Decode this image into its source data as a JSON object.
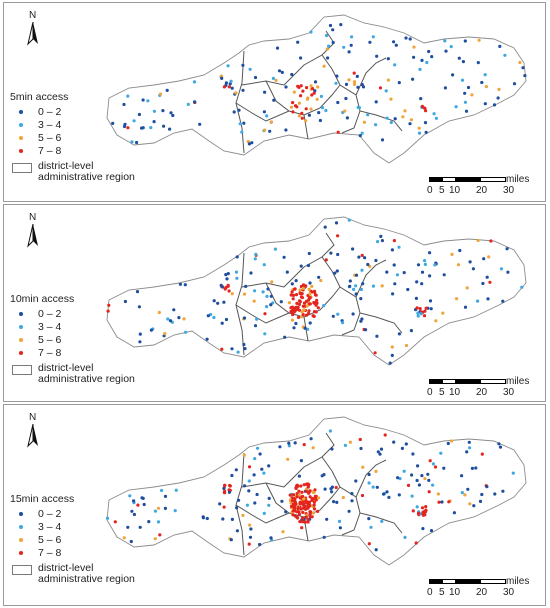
{
  "panels": [
    {
      "legend_title": "5min access",
      "seed": 11,
      "central_red": 25
    },
    {
      "legend_title": "10min access",
      "seed": 29,
      "central_red": 85
    },
    {
      "legend_title": "15min access",
      "seed": 53,
      "central_red": 135
    }
  ],
  "legend": {
    "classes": [
      {
        "label": "0 – 2",
        "color": "#1f4e9e"
      },
      {
        "label": "3 – 4",
        "color": "#3fa8e0"
      },
      {
        "label": "5 – 6",
        "color": "#f0a43a"
      },
      {
        "label": "7 – 8",
        "color": "#e3251e"
      }
    ],
    "region_label_line1": "district-level",
    "region_label_line2": "administrative region"
  },
  "north_label": "N",
  "scale": {
    "ticks": [
      "0",
      "5",
      "10",
      "20",
      "30"
    ],
    "units": "miles"
  },
  "colors": {
    "boundary": "#8c8c8c",
    "district_lines": "#555555"
  }
}
